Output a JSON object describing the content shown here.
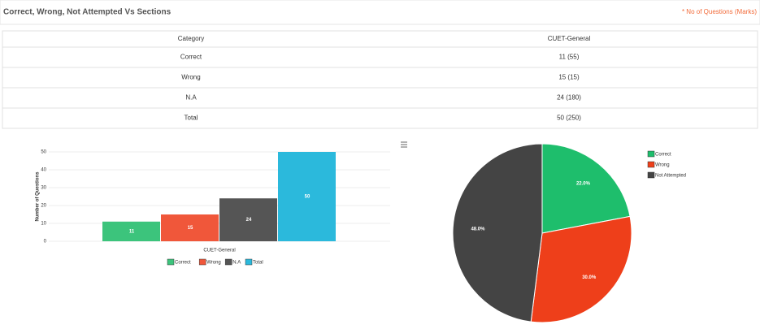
{
  "header": {
    "title": "Correct, Wrong, Not Attempted Vs Sections",
    "note": "* No of Questions (Marks)"
  },
  "table": {
    "columns": [
      "Category",
      "CUET-General"
    ],
    "rows": [
      [
        "Correct",
        "11 (55)"
      ],
      [
        "Wrong",
        "15 (15)"
      ],
      [
        "N.A",
        "24 (180)"
      ],
      [
        "Total",
        "50 (250)"
      ]
    ]
  },
  "chart_data": [
    {
      "type": "bar",
      "y_label": "Number of Questions",
      "categories": [
        "CUET-General"
      ],
      "series": [
        {
          "name": "Correct",
          "color": "#3cc47c",
          "values": [
            11
          ]
        },
        {
          "name": "Wrong",
          "color": "#f0573a",
          "values": [
            15
          ]
        },
        {
          "name": "N.A",
          "color": "#555555",
          "values": [
            24
          ]
        },
        {
          "name": "Total",
          "color": "#2bb9dc",
          "values": [
            50
          ]
        }
      ],
      "ylim": [
        0,
        50
      ],
      "yticks": [
        0,
        10,
        20,
        30,
        40,
        50
      ],
      "grid": true,
      "legend": "bottom"
    },
    {
      "type": "pie",
      "categories": [
        "Correct",
        "Wrong",
        "Not Attempted"
      ],
      "values": [
        22,
        30,
        48
      ],
      "value_labels": [
        "22.0%",
        "30.0%",
        "48.0%"
      ],
      "colors": [
        "#1ebe6c",
        "#ee3f1a",
        "#444444"
      ],
      "legend": "top-right"
    }
  ]
}
